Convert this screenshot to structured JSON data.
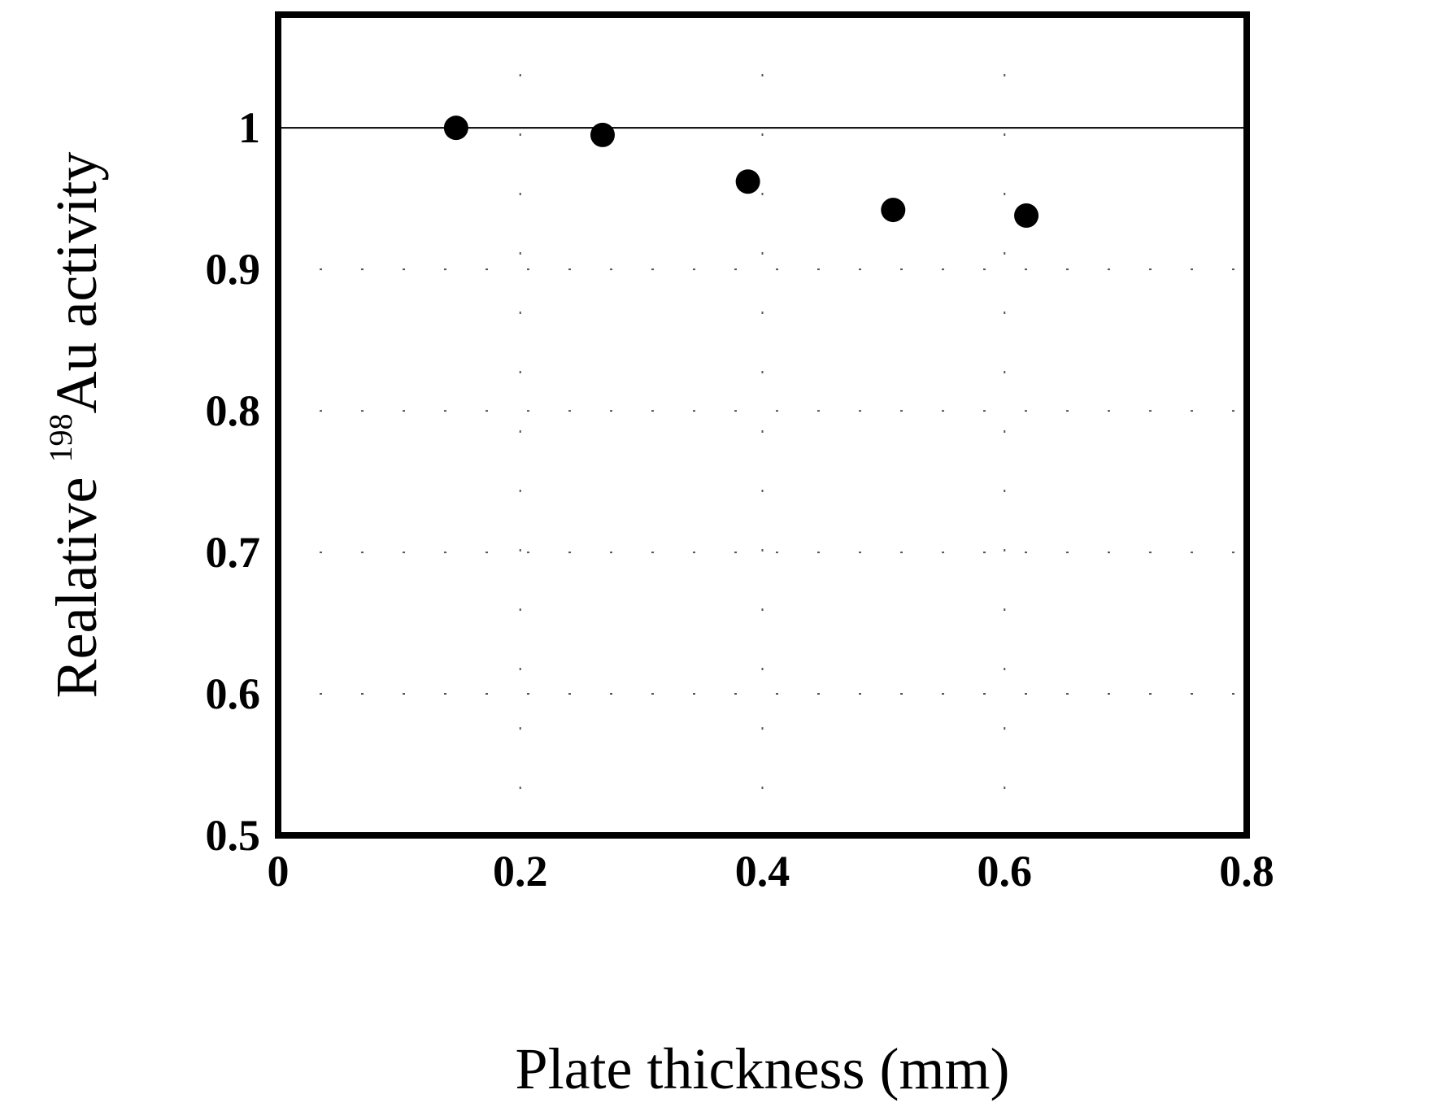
{
  "chart_data": {
    "type": "scatter",
    "xlabel": "Plate thickness (mm)",
    "ylabel": {
      "prefix": "Realative ",
      "superscript": "198",
      "suffix": "Au activity"
    },
    "xlim": [
      0,
      0.8
    ],
    "ylim": [
      0.5,
      1.08
    ],
    "x_ticks": [
      0,
      0.2,
      0.4,
      0.6,
      0.8
    ],
    "x_tick_labels": [
      "0",
      "0.2",
      "0.4",
      "0.6",
      "0.8"
    ],
    "y_ticks": [
      0.5,
      0.6,
      0.7,
      0.8,
      0.9,
      1.0
    ],
    "y_tick_labels": [
      "0.5",
      "0.6",
      "0.7",
      "0.8",
      "0.9",
      "1"
    ],
    "reference_line_y": 1.0,
    "grid": true,
    "marker_color": "#000000",
    "series": [
      {
        "x": [
          0.147,
          0.268,
          0.388,
          0.508,
          0.618
        ],
        "y": [
          1.0,
          0.995,
          0.962,
          0.942,
          0.938
        ]
      }
    ]
  }
}
